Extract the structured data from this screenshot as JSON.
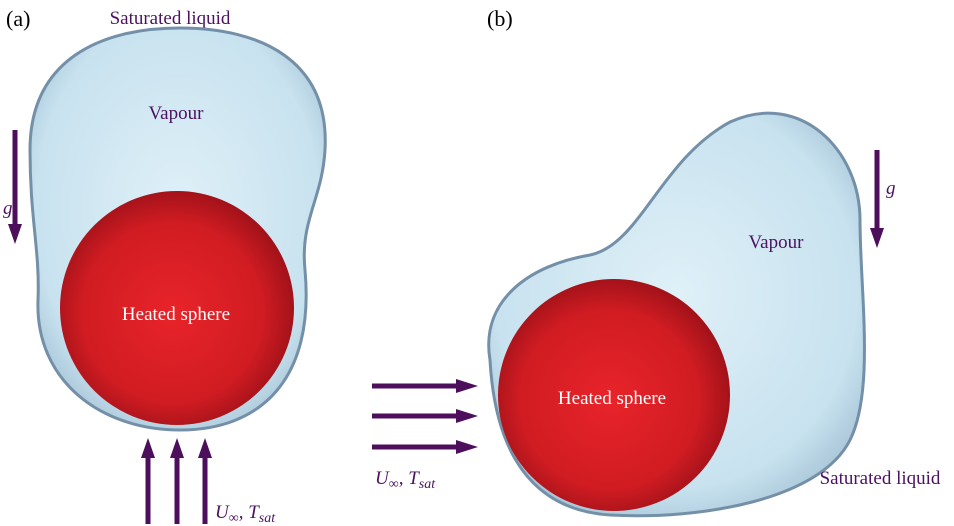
{
  "panels": [
    {
      "label": "(a)",
      "liquid": "Saturated liquid",
      "vapour": "Vapour",
      "sphere": "Heated sphere",
      "gravity": "g",
      "flow": {
        "u": "U",
        "inf": "∞",
        "sep": ", ",
        "t": "T",
        "sub": "sat"
      }
    },
    {
      "label": "(b)",
      "liquid": "Saturated liquid",
      "vapour": "Vapour",
      "sphere": "Heated sphere",
      "gravity": "g",
      "flow": {
        "u": "U",
        "inf": "∞",
        "sep": ", ",
        "t": "T",
        "sub": "sat"
      }
    }
  ]
}
